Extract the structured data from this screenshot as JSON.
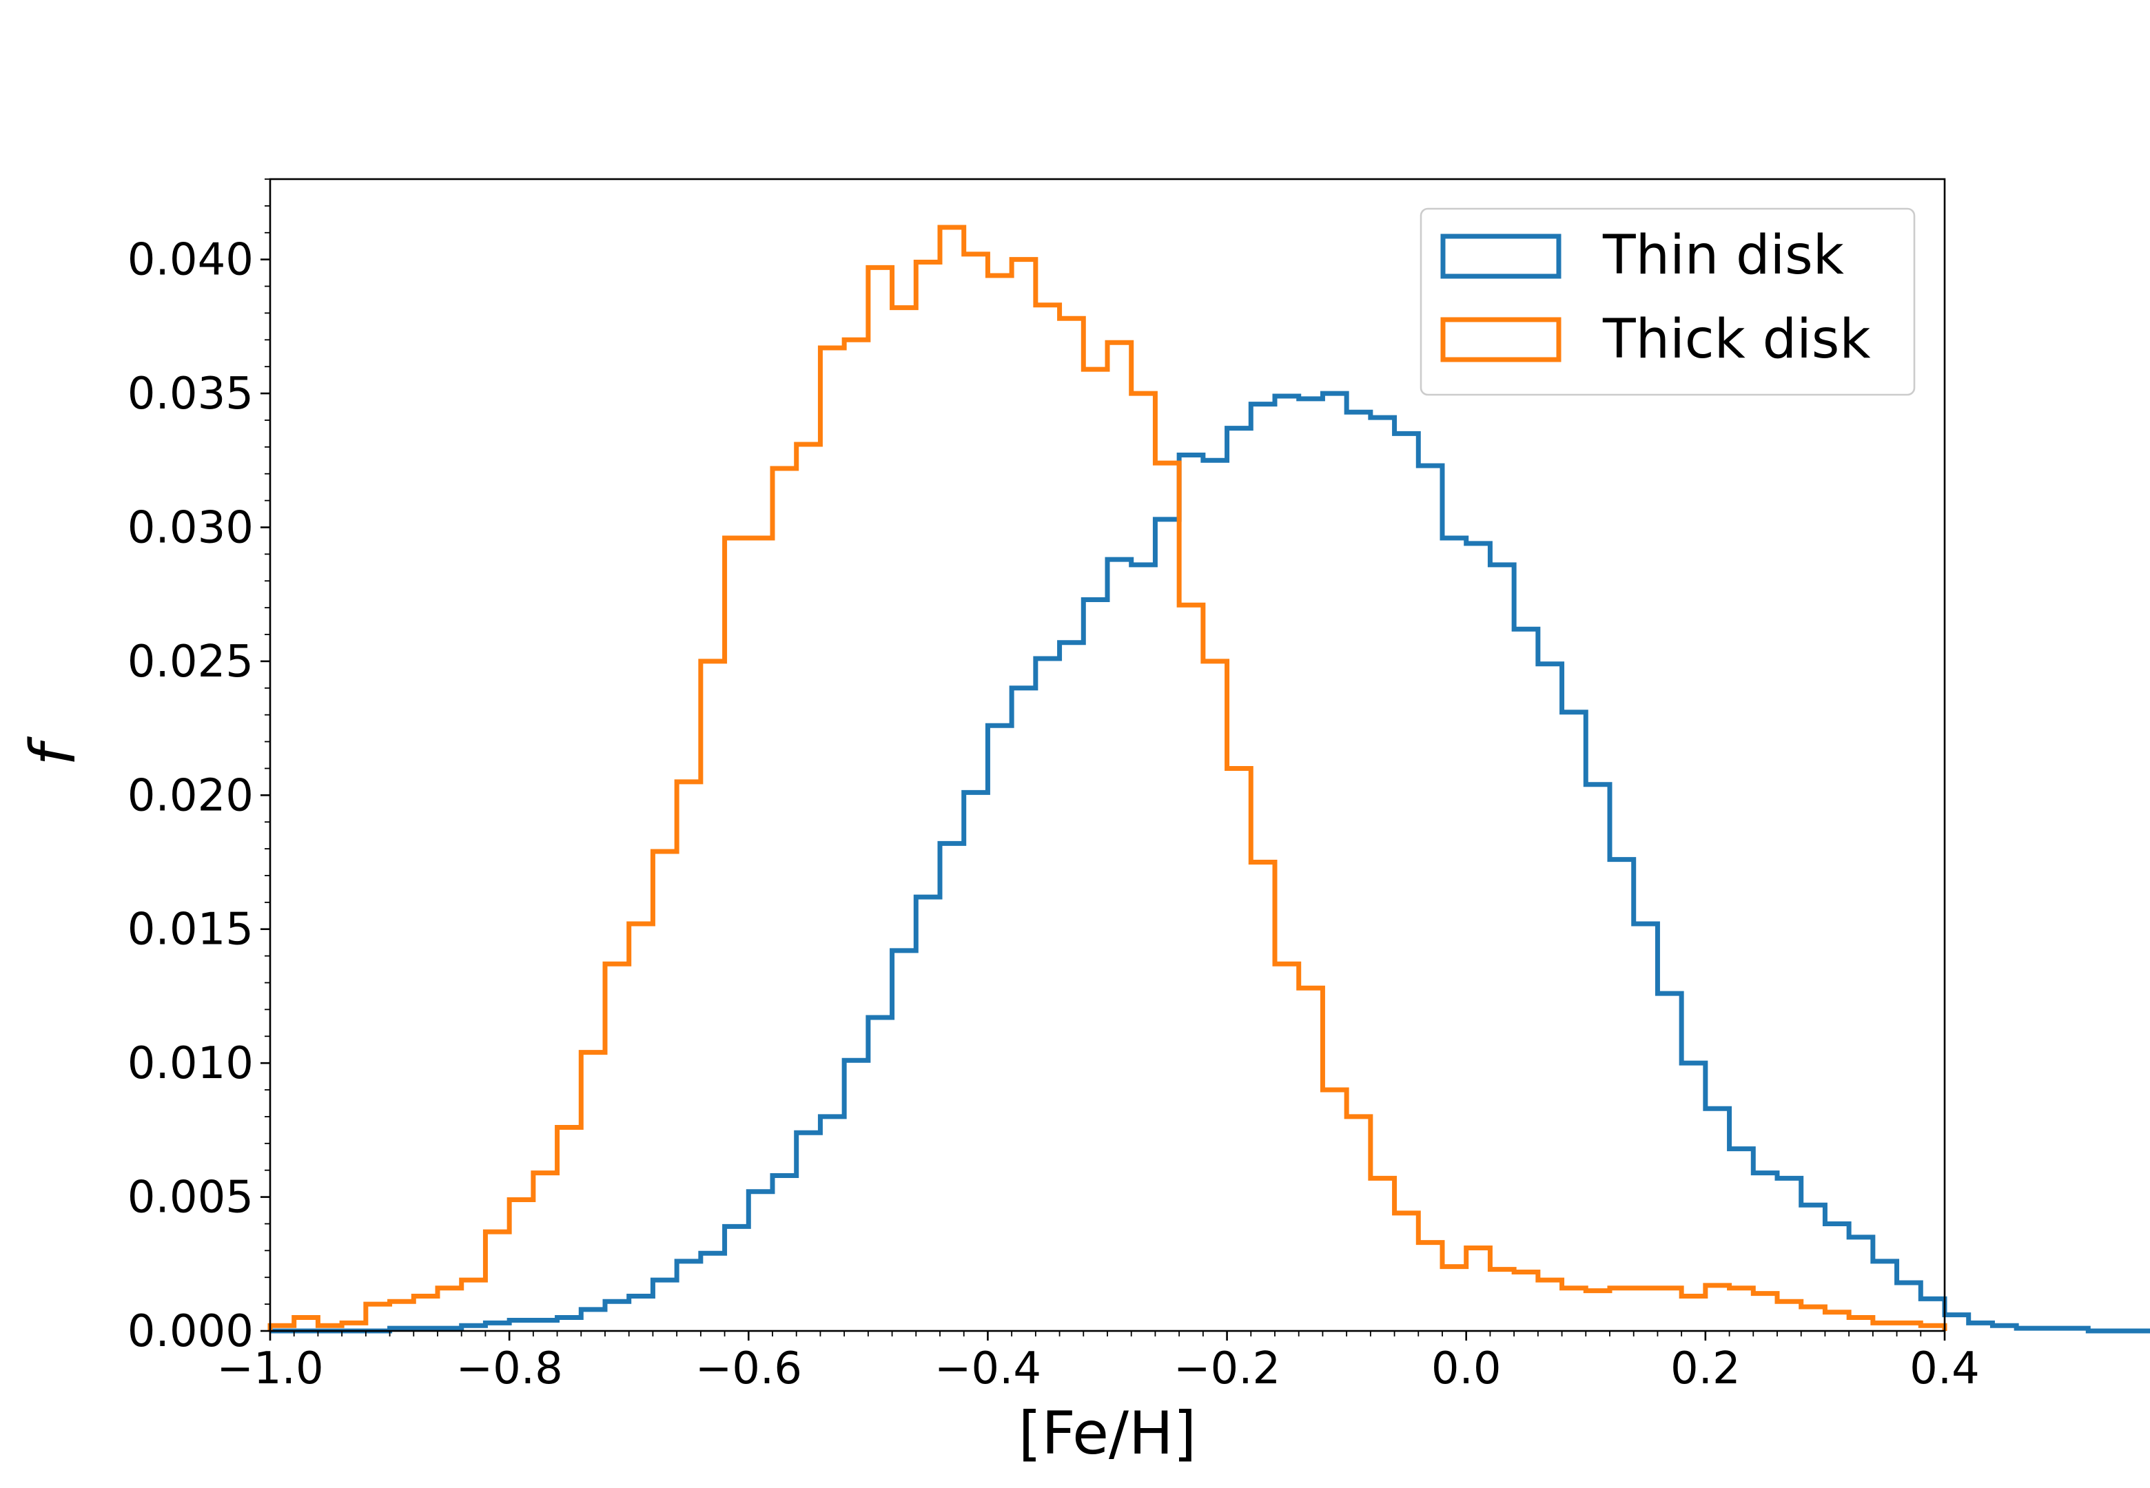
{
  "chart_data": {
    "type": "step-histogram",
    "title": "",
    "xlabel": "[Fe/H]",
    "ylabel": "f",
    "xlim": [
      -1.0,
      0.4
    ],
    "ylim": [
      0.0,
      0.043
    ],
    "xticks": [
      -1.0,
      -0.8,
      -0.6,
      -0.4,
      -0.2,
      0.0,
      0.2,
      0.4
    ],
    "xtick_labels": [
      "−1.0",
      "−0.8",
      "−0.6",
      "−0.4",
      "−0.2",
      "0.0",
      "0.2",
      "0.4"
    ],
    "yticks": [
      0.0,
      0.005,
      0.01,
      0.015,
      0.02,
      0.025,
      0.03,
      0.035,
      0.04
    ],
    "ytick_labels": [
      "0.000",
      "0.005",
      "0.010",
      "0.015",
      "0.020",
      "0.025",
      "0.030",
      "0.035",
      "0.040"
    ],
    "grid": false,
    "legend_position": "top-right",
    "bin_start": -1.0,
    "bin_width": 0.02,
    "series": [
      {
        "name": "Thin disk",
        "color": "#1f77b4",
        "values": [
          0.0,
          0.0,
          0.0,
          0.0,
          0.0,
          0.0001,
          0.0001,
          0.0001,
          0.0002,
          0.0003,
          0.0004,
          0.0004,
          0.0005,
          0.0008,
          0.0011,
          0.0013,
          0.0019,
          0.0026,
          0.0029,
          0.0039,
          0.0052,
          0.0058,
          0.0074,
          0.008,
          0.0101,
          0.0117,
          0.0142,
          0.0162,
          0.0182,
          0.0201,
          0.0226,
          0.024,
          0.0251,
          0.0257,
          0.0273,
          0.0288,
          0.0286,
          0.0303,
          0.0327,
          0.0325,
          0.0337,
          0.0346,
          0.0349,
          0.0348,
          0.035,
          0.0343,
          0.0341,
          0.0335,
          0.0323,
          0.0296,
          0.0294,
          0.0286,
          0.0262,
          0.0249,
          0.0231,
          0.0204,
          0.0176,
          0.0152,
          0.0126,
          0.01,
          0.0083,
          0.0068,
          0.0059,
          0.0057,
          0.0047,
          0.004,
          0.0035,
          0.0026,
          0.0018,
          0.0012,
          0.0006,
          0.0003,
          0.0002,
          0.0001,
          0.0001,
          0.0001,
          0.0,
          0.0,
          0.0,
          0.0
        ]
      },
      {
        "name": "Thick disk",
        "color": "#ff7f0e",
        "values": [
          0.0002,
          0.0005,
          0.0002,
          0.0003,
          0.001,
          0.0011,
          0.0013,
          0.0016,
          0.0019,
          0.0037,
          0.0049,
          0.0059,
          0.0076,
          0.0104,
          0.0137,
          0.0152,
          0.0179,
          0.0205,
          0.025,
          0.0296,
          0.0296,
          0.0322,
          0.0331,
          0.0367,
          0.037,
          0.0397,
          0.0382,
          0.0399,
          0.0412,
          0.0402,
          0.0394,
          0.04,
          0.0383,
          0.0378,
          0.0359,
          0.0369,
          0.035,
          0.0324,
          0.0271,
          0.025,
          0.021,
          0.0175,
          0.0137,
          0.0128,
          0.009,
          0.008,
          0.0057,
          0.0044,
          0.0033,
          0.0024,
          0.0031,
          0.0023,
          0.0022,
          0.0019,
          0.0016,
          0.0015,
          0.0016,
          0.0016,
          0.0016,
          0.0013,
          0.0017,
          0.0016,
          0.0014,
          0.0011,
          0.0009,
          0.0007,
          0.0005,
          0.0003,
          0.0003,
          0.0002
        ]
      }
    ]
  }
}
